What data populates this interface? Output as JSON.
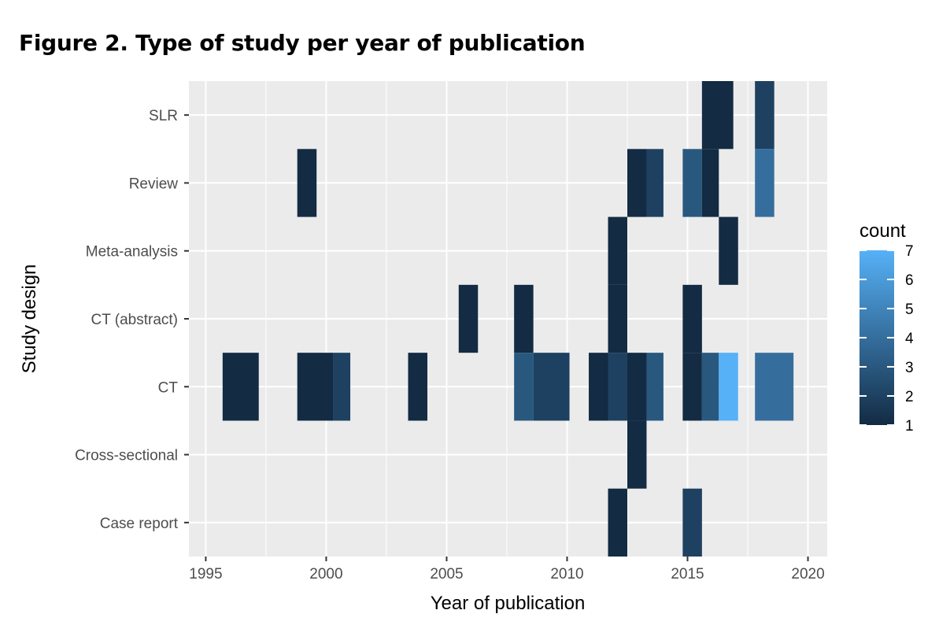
{
  "title": "Figure 2. Type of study per year of publication",
  "chart_data": {
    "type": "heatmap",
    "xlabel": "Year of publication",
    "ylabel": "Study design",
    "xlim": [
      1994.3,
      2020.8
    ],
    "x_ticks": [
      "1995",
      "2000",
      "2005",
      "2010",
      "2015",
      "2020"
    ],
    "categories": [
      "Case report",
      "Cross-sectional",
      "CT",
      "CT (abstract)",
      "Meta-analysis",
      "Review",
      "SLR"
    ],
    "legend": {
      "title": "count",
      "range": [
        1,
        7
      ],
      "ticks": [
        "1",
        "2",
        "3",
        "4",
        "5",
        "6",
        "7"
      ],
      "low_color": "#132B43",
      "high_color": "#56B1F7"
    },
    "grid": true,
    "background": "#EBEBEB",
    "cells": [
      {
        "category": "SLR",
        "x_start": 2015.6,
        "x_end": 2016.9,
        "count": 1
      },
      {
        "category": "SLR",
        "x_start": 2017.8,
        "x_end": 2018.6,
        "count": 2
      },
      {
        "category": "Review",
        "x_start": 1998.8,
        "x_end": 1999.6,
        "count": 1
      },
      {
        "category": "Review",
        "x_start": 2012.5,
        "x_end": 2013.3,
        "count": 1
      },
      {
        "category": "Review",
        "x_start": 2013.3,
        "x_end": 2014.0,
        "count": 2
      },
      {
        "category": "Review",
        "x_start": 2014.8,
        "x_end": 2015.6,
        "count": 3
      },
      {
        "category": "Review",
        "x_start": 2015.6,
        "x_end": 2016.3,
        "count": 1
      },
      {
        "category": "Review",
        "x_start": 2017.8,
        "x_end": 2018.6,
        "count": 4
      },
      {
        "category": "Meta-analysis",
        "x_start": 2011.7,
        "x_end": 2012.5,
        "count": 1
      },
      {
        "category": "Meta-analysis",
        "x_start": 2016.3,
        "x_end": 2017.1,
        "count": 1
      },
      {
        "category": "CT (abstract)",
        "x_start": 2005.5,
        "x_end": 2006.3,
        "count": 1
      },
      {
        "category": "CT (abstract)",
        "x_start": 2007.8,
        "x_end": 2008.6,
        "count": 1
      },
      {
        "category": "CT (abstract)",
        "x_start": 2011.7,
        "x_end": 2012.5,
        "count": 1
      },
      {
        "category": "CT (abstract)",
        "x_start": 2014.8,
        "x_end": 2015.6,
        "count": 1
      },
      {
        "category": "CT",
        "x_start": 1995.7,
        "x_end": 1997.2,
        "count": 1
      },
      {
        "category": "CT",
        "x_start": 1998.8,
        "x_end": 2000.3,
        "count": 1
      },
      {
        "category": "CT",
        "x_start": 2000.3,
        "x_end": 2001.0,
        "count": 2
      },
      {
        "category": "CT",
        "x_start": 2003.4,
        "x_end": 2004.2,
        "count": 1
      },
      {
        "category": "CT",
        "x_start": 2007.8,
        "x_end": 2008.6,
        "count": 3
      },
      {
        "category": "CT",
        "x_start": 2008.6,
        "x_end": 2010.1,
        "count": 2
      },
      {
        "category": "CT",
        "x_start": 2010.9,
        "x_end": 2011.7,
        "count": 1
      },
      {
        "category": "CT",
        "x_start": 2011.7,
        "x_end": 2012.5,
        "count": 2
      },
      {
        "category": "CT",
        "x_start": 2012.5,
        "x_end": 2013.3,
        "count": 1
      },
      {
        "category": "CT",
        "x_start": 2013.3,
        "x_end": 2014.0,
        "count": 3
      },
      {
        "category": "CT",
        "x_start": 2014.8,
        "x_end": 2015.6,
        "count": 1
      },
      {
        "category": "CT",
        "x_start": 2015.6,
        "x_end": 2016.3,
        "count": 3
      },
      {
        "category": "CT",
        "x_start": 2016.3,
        "x_end": 2017.1,
        "count": 7
      },
      {
        "category": "CT",
        "x_start": 2017.8,
        "x_end": 2019.4,
        "count": 4
      },
      {
        "category": "Cross-sectional",
        "x_start": 2012.5,
        "x_end": 2013.3,
        "count": 1
      },
      {
        "category": "Case report",
        "x_start": 2011.7,
        "x_end": 2012.5,
        "count": 1
      },
      {
        "category": "Case report",
        "x_start": 2014.8,
        "x_end": 2015.6,
        "count": 2
      }
    ]
  }
}
